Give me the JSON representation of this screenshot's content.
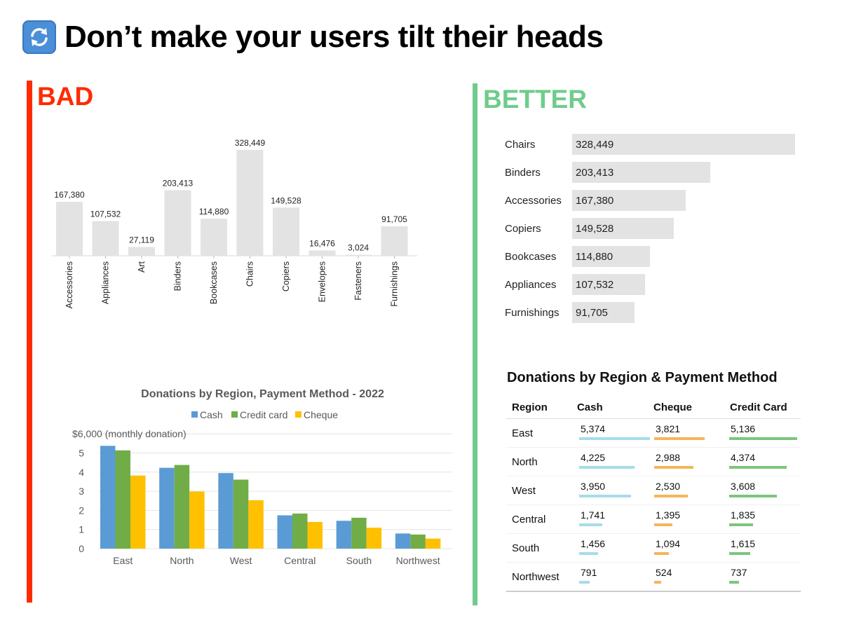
{
  "title": "Don’t make your users tilt their heads",
  "labels": {
    "bad": "BAD",
    "better": "BETTER"
  },
  "colors": {
    "bad": "#ff2a00",
    "better": "#6fcc8c",
    "cash": "#5b9bd5",
    "credit": "#70ad47",
    "cheque": "#ffc000",
    "table_cash": "#a6dde9",
    "table_cheque": "#f5b55a",
    "table_credit": "#7cc67e",
    "bar_gray": "#e3e3e3"
  },
  "icons": {
    "title": "repeat-arrows-icon"
  },
  "chart_data": [
    {
      "type": "bar",
      "categories": [
        "Accessories",
        "Appliances",
        "Art",
        "Binders",
        "Bookcases",
        "Chairs",
        "Copiers",
        "Envelopes",
        "Fasteners",
        "Furnishings"
      ],
      "values": [
        167380,
        107532,
        27119,
        203413,
        114880,
        328449,
        149528,
        16476,
        3024,
        91705
      ],
      "value_labels": [
        "167,380",
        "107,532",
        "27,119",
        "203,413",
        "114,880",
        "328,449",
        "149,528",
        "16,476",
        "3,024",
        "91,705"
      ],
      "ylim": [
        0,
        340000
      ],
      "x_tick_rotation": "vertical",
      "grid": false
    },
    {
      "type": "bar",
      "title": "Donations by Region, Payment Method - 2022",
      "categories": [
        "East",
        "North",
        "West",
        "Central",
        "South",
        "Northwest"
      ],
      "series": [
        {
          "name": "Cash",
          "values": [
            5.374,
            4.225,
            3.95,
            1.741,
            1.456,
            0.791
          ]
        },
        {
          "name": "Credit card",
          "values": [
            5.136,
            4.374,
            3.608,
            1.835,
            1.615,
            0.737
          ]
        },
        {
          "name": "Cheque",
          "values": [
            3.821,
            2.988,
            2.53,
            1.395,
            1.094,
            0.524
          ]
        }
      ],
      "yticks": [
        "0",
        "1",
        "2",
        "3",
        "4",
        "5",
        "$6,000 (monthly donation)"
      ],
      "ylim": [
        0,
        6
      ],
      "legend": "top",
      "grid": true
    },
    {
      "type": "bar",
      "orientation": "horizontal",
      "categories": [
        "Chairs",
        "Binders",
        "Accessories",
        "Copiers",
        "Bookcases",
        "Appliances",
        "Furnishings"
      ],
      "values": [
        328449,
        203413,
        167380,
        149528,
        114880,
        107532,
        91705
      ],
      "value_labels": [
        "328,449",
        "203,413",
        "167,380",
        "149,528",
        "114,880",
        "107,532",
        "91,705"
      ],
      "sort": "descending"
    },
    {
      "type": "table",
      "title": "Donations by Region & Payment Method",
      "columns": [
        "Region",
        "Cash",
        "Cheque",
        "Credit Card"
      ],
      "rows": [
        {
          "region": "East",
          "cash": "5,374",
          "cheque": "3,821",
          "credit": "5,136",
          "cash_n": 5374,
          "cheque_n": 3821,
          "credit_n": 5136
        },
        {
          "region": "North",
          "cash": "4,225",
          "cheque": "2,988",
          "credit": "4,374",
          "cash_n": 4225,
          "cheque_n": 2988,
          "credit_n": 4374
        },
        {
          "region": "West",
          "cash": "3,950",
          "cheque": "2,530",
          "credit": "3,608",
          "cash_n": 3950,
          "cheque_n": 2530,
          "credit_n": 3608
        },
        {
          "region": "Central",
          "cash": "1,741",
          "cheque": "1,395",
          "credit": "1,835",
          "cash_n": 1741,
          "cheque_n": 1395,
          "credit_n": 1835
        },
        {
          "region": "South",
          "cash": "1,456",
          "cheque": "1,094",
          "credit": "1,615",
          "cash_n": 1456,
          "cheque_n": 1094,
          "credit_n": 1615
        },
        {
          "region": "Northwest",
          "cash": "791",
          "cheque": "524",
          "credit": "737",
          "cash_n": 791,
          "cheque_n": 524,
          "credit_n": 737
        }
      ]
    }
  ]
}
